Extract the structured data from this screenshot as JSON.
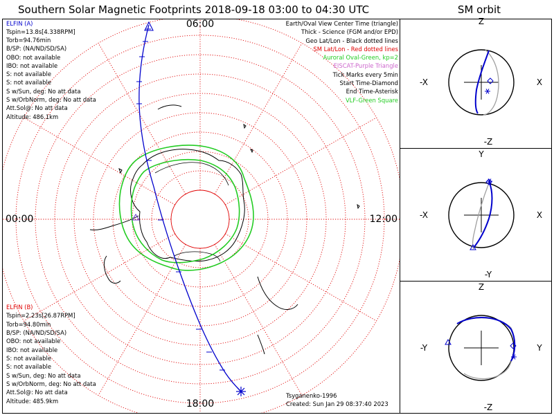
{
  "header": {
    "title": "Southern Solar Magnetic Footprints 2018-09-18 03:00 to 04:30 UTC",
    "orbit_title": "SM orbit"
  },
  "map": {
    "hour_top": "06:00",
    "hour_left": "00:00",
    "hour_right": "12:00",
    "hour_bottom": "18:00"
  },
  "elfin_a": {
    "lines": [
      "ELFIN (A)",
      "Tspin=13.8s[4.338RPM]",
      "Torb=94.76min",
      "B/SP: (NA/ND/SD/SA)",
      "OBO: not available",
      "IBO: not available",
      "S: not available",
      "S: not available",
      "S w/Sun, deg: No att data",
      "S w/OrbNorm, deg: No att data",
      "Att.Sol@: No att data",
      "Altitude: 486.1km"
    ]
  },
  "elfin_b": {
    "lines": [
      "ELFIN (B)",
      "Tspin=2.23s[26.87RPM]",
      "Torb=94.80min",
      "B/SP: (NA/ND/SD/SA)",
      "OBO: not available",
      "IBO: not available",
      "S: not available",
      "S: not available",
      "S w/Sun, deg: No att data",
      "S w/OrbNorm, deg: No att data",
      "Att.Sol@: No att data",
      "Altitude: 485.9km"
    ]
  },
  "legend": [
    {
      "text": "Earth/Oval View Center Time (triangle)",
      "color": "#000000"
    },
    {
      "text": "Thick - Science (FGM and/or EPD)",
      "color": "#000000"
    },
    {
      "text": "Geo Lat/Lon - Black dotted lines",
      "color": "#000000"
    },
    {
      "text": "SM Lat/Lon - Red dotted lines",
      "color": "#e00000"
    },
    {
      "text": "Auroral Oval-Green, kp=2",
      "color": "#22cc22"
    },
    {
      "text": "EISCAT-Purple Triangle",
      "color": "#cc66cc"
    },
    {
      "text": "Tick Marks every 5min",
      "color": "#000000"
    },
    {
      "text": "Start Time-Diamond",
      "color": "#000000"
    },
    {
      "text": "End Time-Asterisk",
      "color": "#000000"
    },
    {
      "text": "VLF-Green Square",
      "color": "#22cc22"
    }
  ],
  "footer": {
    "credit": "Tsyganenko-1996",
    "created": "Created: Sun Jan 29 08:37:40 2023"
  },
  "orbit_panels": [
    {
      "top": "Z",
      "bottom": "-Z",
      "left": "-X",
      "right": "X"
    },
    {
      "top": "Y",
      "bottom": "-Y",
      "left": "-X",
      "right": "X"
    },
    {
      "top": "Z",
      "bottom": "-Z",
      "left": "-Y",
      "right": "Y"
    }
  ],
  "colors": {
    "elfin_a": "#0000cc",
    "elfin_b": "#e00000",
    "sm_grid": "#e00000",
    "oval": "#22cc22",
    "orbit": "#0000cc",
    "orbit_other": "#a0a0a0"
  }
}
